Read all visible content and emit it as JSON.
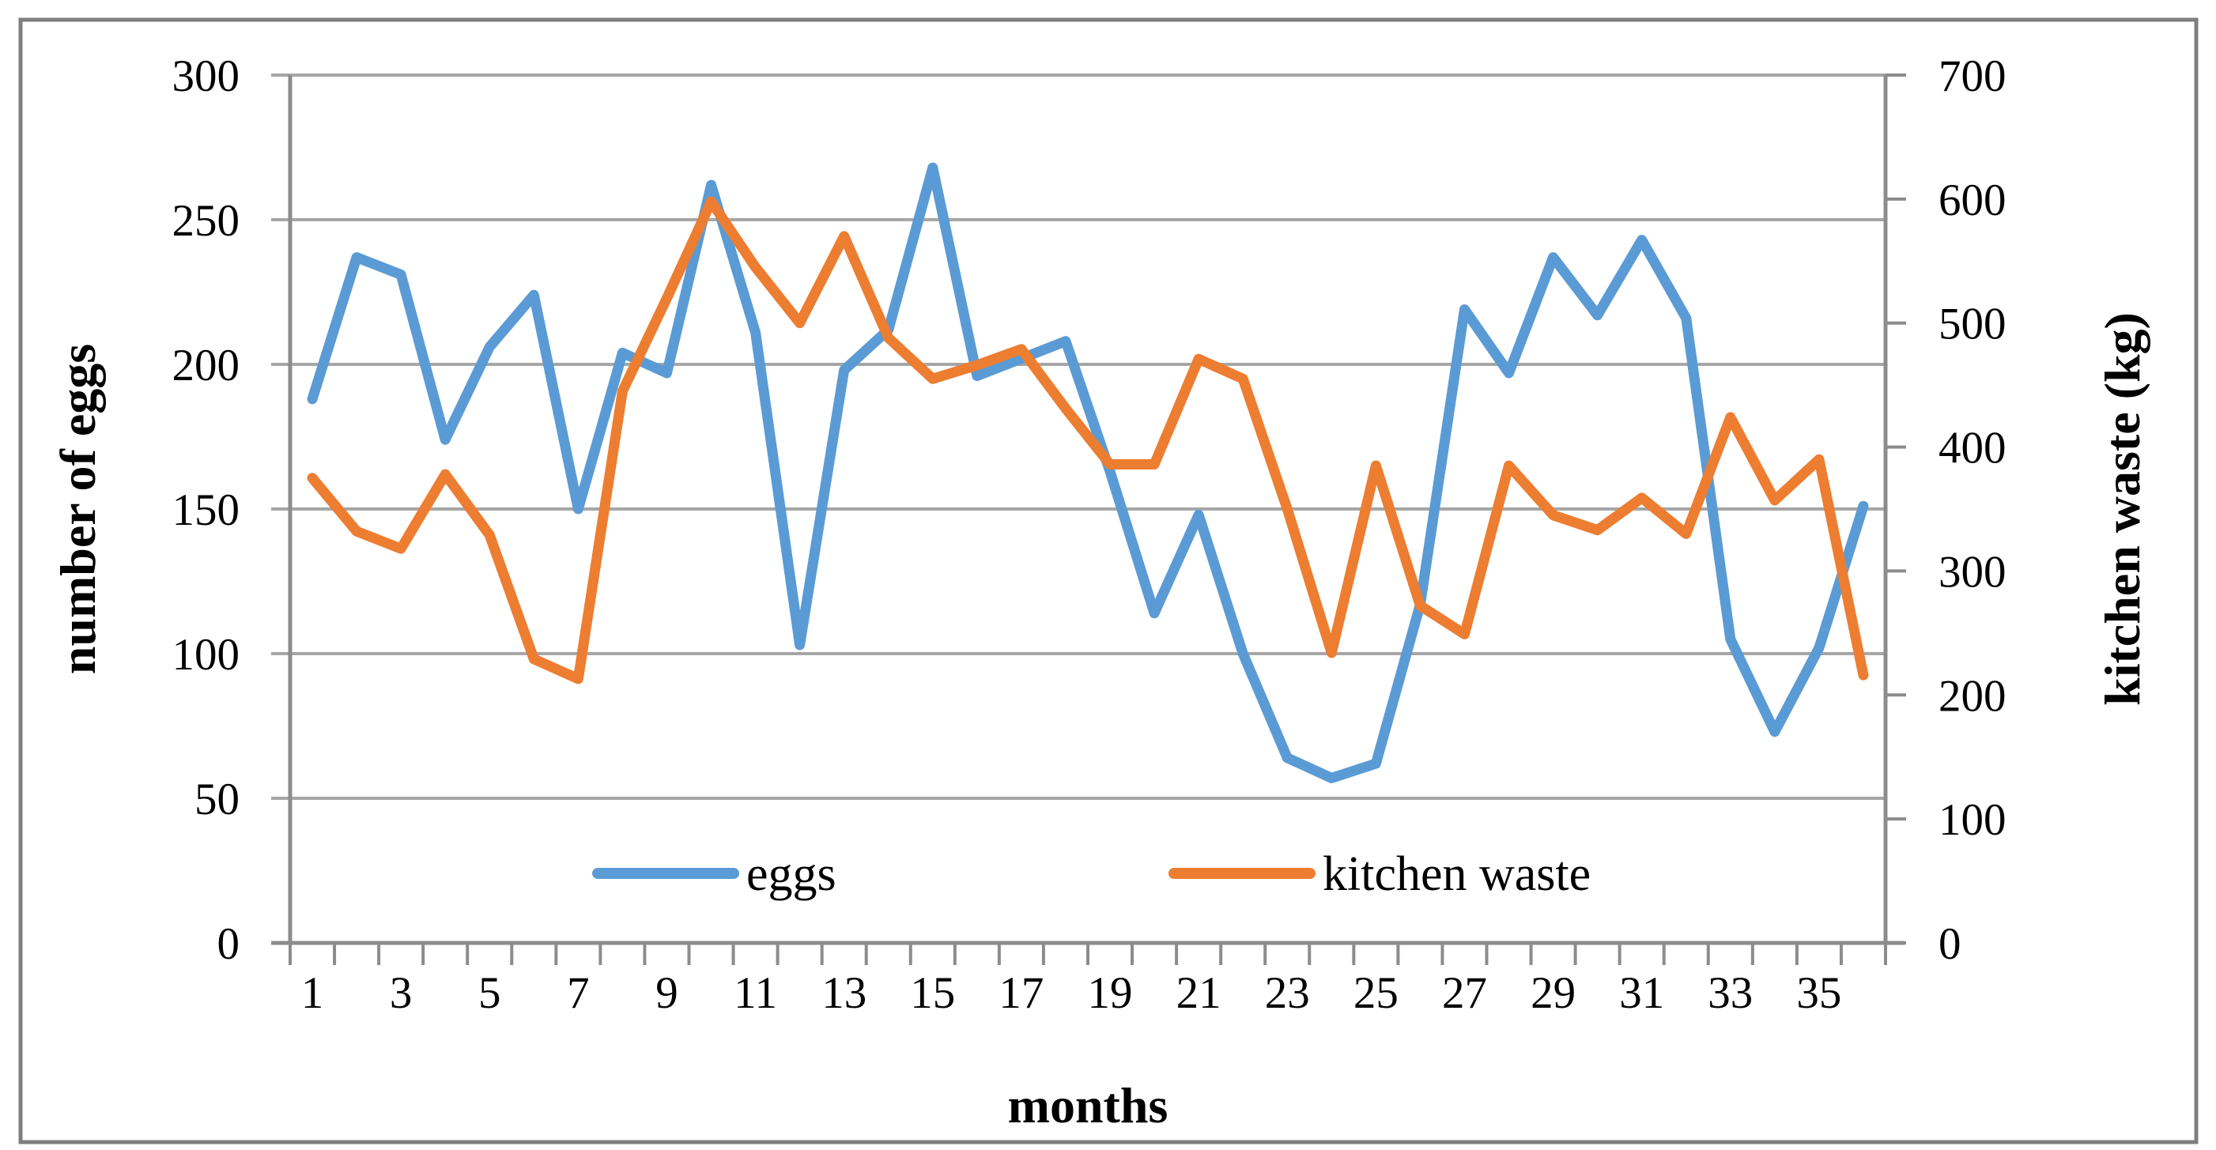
{
  "chart_data": {
    "type": "line",
    "title": "",
    "xlabel": "months",
    "ylabel_left": "number of eggs",
    "ylabel_right": "kitchen waste (kg)",
    "x_months": [
      1,
      2,
      3,
      4,
      5,
      6,
      7,
      8,
      9,
      10,
      11,
      12,
      13,
      14,
      15,
      16,
      17,
      18,
      19,
      20,
      21,
      22,
      23,
      24,
      25,
      26,
      27,
      28,
      29,
      30,
      31,
      32,
      33,
      34,
      35,
      36
    ],
    "xtick_labels": [
      "1",
      "3",
      "5",
      "7",
      "9",
      "11",
      "13",
      "15",
      "17",
      "19",
      "21",
      "23",
      "25",
      "27",
      "29",
      "31",
      "33",
      "35"
    ],
    "ylim_left": [
      0,
      300
    ],
    "ylim_right": [
      0,
      700
    ],
    "yticks_left": [
      "300",
      "250",
      "200",
      "150",
      "100",
      "50",
      "0"
    ],
    "yticks_right": [
      "700",
      "600",
      "500",
      "400",
      "300",
      "200",
      "100",
      "0"
    ],
    "grid": "horizontal-on",
    "legend_position": "inside-bottom",
    "series": [
      {
        "name": "eggs",
        "axis": "left",
        "color": "#5B9BD5",
        "values": [
          188,
          237,
          231,
          174,
          206,
          224,
          150,
          204,
          197,
          262,
          211,
          103,
          198,
          212,
          268,
          196,
          202,
          208,
          163,
          114,
          148,
          100,
          64,
          57,
          62,
          117,
          219,
          197,
          237,
          217,
          243,
          216,
          105,
          73,
          102,
          151
        ]
      },
      {
        "name": "kitchen waste",
        "axis": "right",
        "color": "#ED7D31",
        "values": [
          375,
          332,
          318,
          378,
          329,
          229,
          213,
          445,
          520,
          598,
          545,
          500,
          570,
          488,
          455,
          466,
          479,
          431,
          386,
          386,
          471,
          455,
          350,
          234,
          385,
          272,
          249,
          385,
          345,
          333,
          359,
          330,
          424,
          357,
          390,
          216
        ]
      }
    ]
  },
  "legend": {
    "eggs_label": "eggs",
    "kitchen_label": "kitchen waste"
  },
  "axis_titles": {
    "left": "number of eggs",
    "right": "kitchen waste (kg)",
    "bottom": "months"
  },
  "colors": {
    "eggs_line": "#5B9BD5",
    "kitchen_line": "#ED7D31",
    "gridline": "#A6A6A6",
    "axis_line": "#8C8C8C",
    "figure_border": "#7F7F7F",
    "text": "#000000",
    "background": "#FFFFFF"
  }
}
